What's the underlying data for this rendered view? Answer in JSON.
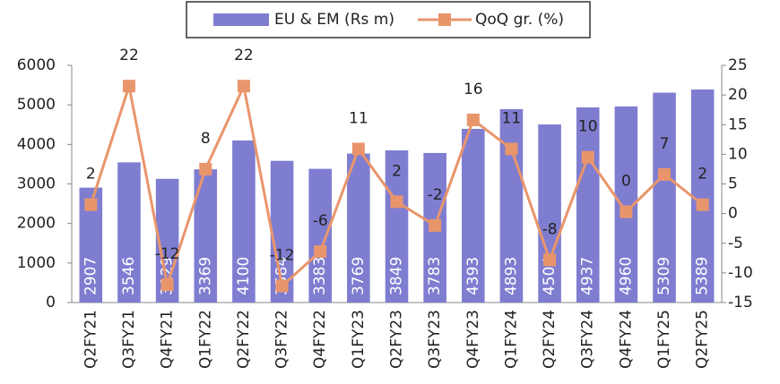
{
  "chart_data": {
    "type": "bar_line",
    "categories": [
      "Q2FY21",
      "Q3FY21",
      "Q4FY21",
      "Q1FY22",
      "Q2FY22",
      "Q3FY22",
      "Q4FY22",
      "Q1FY23",
      "Q2FY23",
      "Q3FY23",
      "Q4FY23",
      "Q1FY24",
      "Q2FY24",
      "Q3FY24",
      "Q4FY24",
      "Q1FY25",
      "Q2FY25"
    ],
    "series": [
      {
        "name": "EU & EM (Rs m)",
        "color": "#7f7dd0",
        "type": "bar",
        "values": [
          2907,
          3546,
          3129,
          3369,
          4100,
          3584,
          3383,
          3769,
          3849,
          3783,
          4393,
          4893,
          4504,
          4937,
          4960,
          5309,
          5389
        ]
      },
      {
        "name": "QoQ gr. (%)",
        "color": "#e9956c",
        "type": "line",
        "axis": "y2",
        "values": [
          1.5,
          21.5,
          -12,
          7.5,
          21.5,
          -12.2,
          -6.4,
          10.9,
          2,
          -2,
          15.8,
          10.9,
          -7.8,
          9.5,
          0.3,
          6.6,
          1.5
        ],
        "value_labels": [
          "2",
          "22",
          "-12",
          "8",
          "22",
          "-12",
          "-6",
          "11",
          "2",
          "-2",
          "16",
          "11",
          "-8",
          "10",
          "0",
          "7",
          "2"
        ]
      }
    ],
    "ylim": [
      0,
      6000
    ],
    "yticks": [
      0,
      1000,
      2000,
      3000,
      4000,
      5000,
      6000
    ],
    "y2lim": [
      -15,
      25
    ],
    "y2ticks": [
      -15,
      -10,
      -5,
      0,
      5,
      10,
      15,
      20,
      25
    ]
  }
}
